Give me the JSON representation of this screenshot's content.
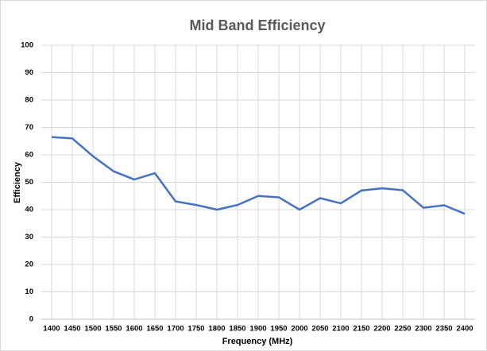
{
  "chart_data": {
    "type": "line",
    "title": "Mid Band Efficiency",
    "x_label": "Frequency (MHz)",
    "y_label": "Efficiency",
    "categories": [
      "1400",
      "1450",
      "1500",
      "1550",
      "1600",
      "1650",
      "1700",
      "1750",
      "1800",
      "1850",
      "1900",
      "1950",
      "2000",
      "2050",
      "2100",
      "2150",
      "2200",
      "2250",
      "2300",
      "2350",
      "2400"
    ],
    "series": [
      {
        "name": "Efficiency",
        "color": "#4472c4",
        "values": [
          66.5,
          66,
          59.5,
          54,
          51,
          53.3,
          43,
          41.7,
          40,
          41.7,
          45,
          44.5,
          40,
          44.2,
          42.3,
          47,
          47.8,
          47.1,
          40.7,
          41.6,
          38.5
        ]
      }
    ],
    "ylim": [
      0,
      100
    ],
    "yticks": [
      0,
      10,
      20,
      30,
      40,
      50,
      60,
      70,
      80,
      90,
      100
    ],
    "grid": true
  }
}
